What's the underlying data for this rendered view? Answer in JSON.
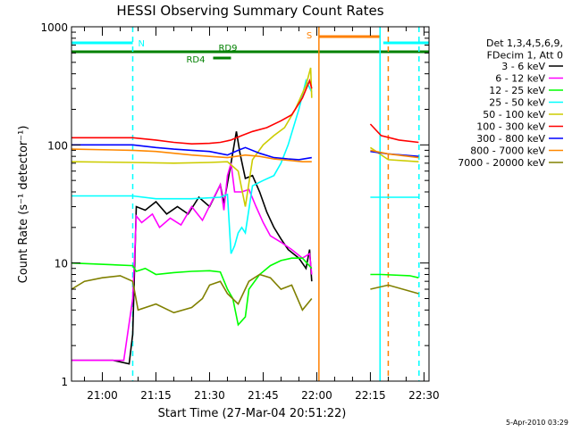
{
  "chart_data": {
    "type": "line",
    "title": "HESSI Observing Summary Count Rates",
    "xlabel": "Start Time (27-Mar-04 20:51:22)",
    "ylabel": "Count Rate (s⁻¹ detector⁻¹)",
    "x_tick_labels": [
      "21:00",
      "21:15",
      "21:30",
      "21:45",
      "22:00",
      "22:15",
      "22:30"
    ],
    "x_tick_minutes": [
      0,
      15,
      30,
      45,
      60,
      75,
      90
    ],
    "xlim_minutes": [
      -8.63,
      91.4
    ],
    "y_scale": "log",
    "ylim": [
      1,
      1000
    ],
    "y_tick_labels": [
      "1",
      "10",
      "100",
      "1000"
    ],
    "y_tick_values": [
      1,
      10,
      100,
      1000
    ],
    "grid": false,
    "legend_position": "right",
    "legend_header": [
      "Det 1,3,4,5,6,9,",
      "FDecim 1, Att 0"
    ],
    "series": [
      {
        "name": "3 - 6 keV",
        "color": "#000000",
        "points": [
          [
            -8.6,
            1.5
          ],
          [
            3,
            1.5
          ],
          [
            7.5,
            1.4
          ],
          [
            8.5,
            2.5
          ],
          [
            9.5,
            30
          ],
          [
            12,
            28
          ],
          [
            15,
            33
          ],
          [
            18,
            26
          ],
          [
            21,
            30
          ],
          [
            24,
            26
          ],
          [
            27,
            36
          ],
          [
            30,
            30
          ],
          [
            33,
            46
          ],
          [
            34,
            32
          ],
          [
            36,
            70
          ],
          [
            37.5,
            130
          ],
          [
            38.5,
            85
          ],
          [
            40,
            52
          ],
          [
            42,
            55
          ],
          [
            44,
            40
          ],
          [
            46,
            27
          ],
          [
            48,
            20
          ],
          [
            50,
            16
          ],
          [
            52,
            13
          ],
          [
            55,
            11
          ],
          [
            57,
            9
          ],
          [
            58,
            13
          ],
          [
            58.6,
            7
          ]
        ]
      },
      {
        "name": "6 - 12 keV",
        "color": "#ff00ff",
        "points": [
          [
            -8.6,
            1.5
          ],
          [
            6,
            1.5
          ],
          [
            8.5,
            5
          ],
          [
            9.5,
            25
          ],
          [
            11,
            22
          ],
          [
            14,
            26
          ],
          [
            16,
            20
          ],
          [
            19,
            24
          ],
          [
            22,
            21
          ],
          [
            25,
            30
          ],
          [
            28,
            23
          ],
          [
            31,
            35
          ],
          [
            33,
            46
          ],
          [
            34,
            28
          ],
          [
            35,
            55
          ],
          [
            36,
            70
          ],
          [
            37,
            40
          ],
          [
            39,
            40
          ],
          [
            41,
            42
          ],
          [
            43,
            30
          ],
          [
            45,
            22
          ],
          [
            47,
            17
          ],
          [
            50,
            15
          ],
          [
            53,
            13
          ],
          [
            56,
            11
          ],
          [
            58,
            12
          ],
          [
            58.6,
            8
          ]
        ]
      },
      {
        "name": "12 - 25 keV",
        "color": "#00ff00",
        "points": [
          [
            -8.6,
            10
          ],
          [
            8.5,
            9.5
          ],
          [
            9.5,
            8.5
          ],
          [
            12,
            9
          ],
          [
            15,
            8
          ],
          [
            20,
            8.3
          ],
          [
            25,
            8.5
          ],
          [
            30,
            8.6
          ],
          [
            33,
            8.4
          ],
          [
            35,
            6
          ],
          [
            36.5,
            5
          ],
          [
            38,
            3
          ],
          [
            40,
            3.5
          ],
          [
            41,
            6
          ],
          [
            44,
            8
          ],
          [
            47,
            9.5
          ],
          [
            50,
            10.5
          ],
          [
            53,
            11
          ],
          [
            56,
            11
          ],
          [
            58.6,
            9
          ],
          [
            75,
            8
          ],
          [
            78,
            8
          ],
          [
            86,
            7.8
          ],
          [
            88.5,
            7.5
          ]
        ]
      },
      {
        "name": "25 - 50 keV",
        "color": "#00ffff",
        "points": [
          [
            -8.6,
            37
          ],
          [
            8.5,
            37
          ],
          [
            15,
            35
          ],
          [
            25,
            35
          ],
          [
            33,
            36
          ],
          [
            35,
            38
          ],
          [
            36,
            12
          ],
          [
            37,
            14
          ],
          [
            38,
            18
          ],
          [
            39,
            20
          ],
          [
            40,
            18
          ],
          [
            42,
            45
          ],
          [
            45,
            50
          ],
          [
            48,
            55
          ],
          [
            50,
            70
          ],
          [
            52,
            100
          ],
          [
            55,
            200
          ],
          [
            57,
            350
          ],
          [
            58.6,
            280
          ],
          [
            75,
            36
          ],
          [
            80,
            36
          ],
          [
            88.5,
            36
          ]
        ]
      },
      {
        "name": "50 - 100 keV",
        "color": "#cccc00",
        "points": [
          [
            -8.6,
            72
          ],
          [
            8.5,
            71
          ],
          [
            20,
            70
          ],
          [
            30,
            71
          ],
          [
            35,
            72
          ],
          [
            38,
            60
          ],
          [
            40,
            30
          ],
          [
            42,
            75
          ],
          [
            45,
            100
          ],
          [
            48,
            120
          ],
          [
            51,
            140
          ],
          [
            54,
            200
          ],
          [
            57,
            320
          ],
          [
            58.3,
            450
          ],
          [
            58.6,
            250
          ],
          [
            75,
            95
          ],
          [
            80,
            75
          ],
          [
            88.5,
            72
          ]
        ]
      },
      {
        "name": "100 - 300 keV",
        "color": "#ff0000",
        "points": [
          [
            -8.6,
            115
          ],
          [
            8.5,
            115
          ],
          [
            15,
            110
          ],
          [
            20,
            105
          ],
          [
            25,
            102
          ],
          [
            30,
            103
          ],
          [
            33,
            105
          ],
          [
            36,
            110
          ],
          [
            39,
            120
          ],
          [
            42,
            130
          ],
          [
            46,
            140
          ],
          [
            50,
            160
          ],
          [
            53,
            180
          ],
          [
            56,
            250
          ],
          [
            58,
            350
          ],
          [
            58.6,
            300
          ],
          [
            75,
            150
          ],
          [
            78,
            120
          ],
          [
            83,
            110
          ],
          [
            88.5,
            105
          ]
        ]
      },
      {
        "name": "300 - 800 keV",
        "color": "#0000ff",
        "points": [
          [
            -8.6,
            100
          ],
          [
            8.5,
            100
          ],
          [
            15,
            95
          ],
          [
            20,
            92
          ],
          [
            25,
            90
          ],
          [
            30,
            88
          ],
          [
            35,
            82
          ],
          [
            38,
            90
          ],
          [
            40,
            95
          ],
          [
            44,
            85
          ],
          [
            48,
            78
          ],
          [
            52,
            76
          ],
          [
            55,
            75
          ],
          [
            58.6,
            78
          ],
          [
            75,
            88
          ],
          [
            80,
            84
          ],
          [
            88.5,
            80
          ]
        ]
      },
      {
        "name": "800 - 7000 keV",
        "color": "#ff8800",
        "points": [
          [
            -8.6,
            92
          ],
          [
            8.5,
            90
          ],
          [
            15,
            88
          ],
          [
            20,
            85
          ],
          [
            25,
            82
          ],
          [
            30,
            80
          ],
          [
            35,
            78
          ],
          [
            40,
            82
          ],
          [
            44,
            80
          ],
          [
            48,
            76
          ],
          [
            52,
            74
          ],
          [
            56,
            72
          ],
          [
            58.6,
            72
          ],
          [
            75,
            90
          ],
          [
            80,
            84
          ],
          [
            88.5,
            78
          ]
        ]
      },
      {
        "name": "7000 - 20000 keV",
        "color": "#808000",
        "points": [
          [
            -8.6,
            6
          ],
          [
            -5,
            7
          ],
          [
            0,
            7.5
          ],
          [
            5,
            7.8
          ],
          [
            8.5,
            7
          ],
          [
            10,
            4
          ],
          [
            15,
            4.5
          ],
          [
            20,
            3.8
          ],
          [
            25,
            4.2
          ],
          [
            28,
            5
          ],
          [
            30,
            6.5
          ],
          [
            33,
            7
          ],
          [
            35,
            5.5
          ],
          [
            38,
            4.5
          ],
          [
            41,
            7
          ],
          [
            44,
            8
          ],
          [
            47,
            7.5
          ],
          [
            50,
            6
          ],
          [
            53,
            6.5
          ],
          [
            56,
            4
          ],
          [
            58.6,
            5
          ],
          [
            75,
            6
          ],
          [
            80,
            6.5
          ],
          [
            88.5,
            5.5
          ]
        ]
      }
    ],
    "status_bars": [
      {
        "label": "N",
        "color": "#00ffff",
        "segments": [
          [
            -8.6,
            8.5
          ],
          [
            78.6,
            91.4
          ]
        ]
      },
      {
        "label": "S",
        "color": "#ff8000",
        "segments": [
          [
            60.6,
            77.7
          ]
        ]
      },
      {
        "label": "RD9",
        "color": "#008000",
        "segments": [
          [
            -8.6,
            91.4
          ]
        ]
      },
      {
        "label": "RD4",
        "color": "#008000",
        "segments": [
          [
            31,
            36
          ]
        ]
      }
    ],
    "vertical_markers": [
      {
        "minute": 8.5,
        "color": "#00ffff",
        "style": "dashed"
      },
      {
        "minute": 60.6,
        "color": "#ff8000",
        "style": "solid"
      },
      {
        "minute": 77.7,
        "color": "#00ffff",
        "style": "solid"
      },
      {
        "minute": 80.0,
        "color": "#ff8000",
        "style": "dashed"
      },
      {
        "minute": 88.6,
        "color": "#00ffff",
        "style": "dashed"
      }
    ]
  },
  "footer": {
    "date_stamp": "5-Apr-2010 03:29"
  }
}
